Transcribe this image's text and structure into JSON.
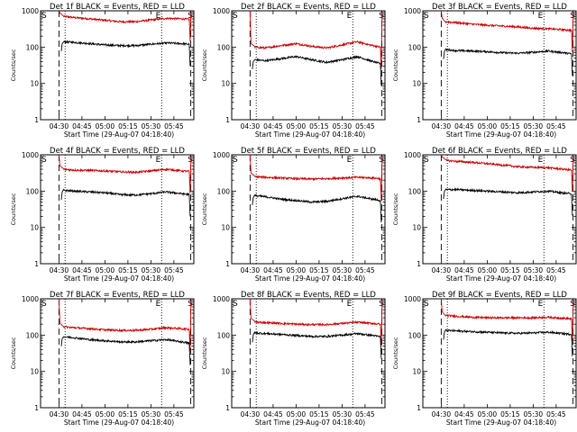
{
  "figure": {
    "y_axis_label": "Counts/sec",
    "x_axis_label": "Start Time (29-Aug-07 04:18:40)",
    "x_tick_labels": [
      "04:30",
      "04:45",
      "05:00",
      "05:15",
      "05:30",
      "05:45"
    ],
    "y_tick_labels": [
      "1",
      "10",
      "100",
      "1000"
    ],
    "marker_labels": {
      "start": "S",
      "end": "E"
    },
    "colors": {
      "events": "#000000",
      "lld": "#cc0000",
      "axes": "#000000"
    }
  },
  "chart_data": [
    {
      "type": "line",
      "title": "Det 1f BLACK = Events, RED = LLD",
      "xlabel": "Start Time (29-Aug-07 04:18:40)",
      "ylabel": "Counts/sec",
      "y_scale": "log",
      "ylim": [
        1,
        1000
      ],
      "xlim": [
        "04:18",
        "05:58"
      ],
      "x_ticks": [
        "04:30",
        "04:45",
        "05:00",
        "05:15",
        "05:30",
        "05:45"
      ],
      "vlines": {
        "dashed": [
          "04:30",
          "05:56"
        ],
        "dotted": [
          "04:34",
          "05:37"
        ]
      },
      "x": [
        "04:33",
        "04:40",
        "04:50",
        "05:00",
        "05:10",
        "05:20",
        "05:30",
        "05:40",
        "05:50",
        "05:55"
      ],
      "series": [
        {
          "name": "LLD",
          "color": "#cc0000",
          "values": [
            700,
            650,
            600,
            550,
            500,
            500,
            560,
            620,
            600,
            580
          ]
        },
        {
          "name": "Events",
          "color": "#000000",
          "values": [
            140,
            135,
            125,
            115,
            110,
            110,
            120,
            130,
            125,
            120
          ]
        }
      ]
    },
    {
      "type": "line",
      "title": "Det 2f BLACK = Events, RED = LLD",
      "xlabel": "Start Time (29-Aug-07 04:18:40)",
      "ylabel": "Counts/sec",
      "y_scale": "log",
      "ylim": [
        1,
        1000
      ],
      "xlim": [
        "04:18",
        "05:58"
      ],
      "x_ticks": [
        "04:30",
        "04:45",
        "05:00",
        "05:15",
        "05:30",
        "05:45"
      ],
      "vlines": {
        "dashed": [
          "04:30",
          "05:56"
        ],
        "dotted": [
          "04:34",
          "05:37"
        ]
      },
      "x": [
        "04:33",
        "04:40",
        "04:50",
        "05:00",
        "05:10",
        "05:20",
        "05:30",
        "05:40",
        "05:50",
        "05:55"
      ],
      "series": [
        {
          "name": "LLD",
          "color": "#cc0000",
          "values": [
            100,
            95,
            110,
            125,
            105,
            95,
            115,
            140,
            110,
            100
          ]
        },
        {
          "name": "Events",
          "color": "#000000",
          "values": [
            45,
            42,
            48,
            55,
            45,
            38,
            45,
            55,
            40,
            35
          ]
        }
      ]
    },
    {
      "type": "line",
      "title": "Det 3f BLACK = Events, RED = LLD",
      "xlabel": "Start Time (29-Aug-07 04:18:40)",
      "ylabel": "Counts/sec",
      "y_scale": "log",
      "ylim": [
        1,
        1000
      ],
      "xlim": [
        "04:18",
        "05:58"
      ],
      "x_ticks": [
        "04:30",
        "04:45",
        "05:00",
        "05:15",
        "05:30",
        "05:45"
      ],
      "vlines": {
        "dashed": [
          "04:30",
          "05:56"
        ],
        "dotted": [
          "04:34",
          "05:37"
        ]
      },
      "x": [
        "04:33",
        "04:40",
        "04:50",
        "05:00",
        "05:10",
        "05:20",
        "05:30",
        "05:40",
        "05:50",
        "05:55"
      ],
      "series": [
        {
          "name": "LLD",
          "color": "#cc0000",
          "values": [
            500,
            470,
            430,
            400,
            380,
            360,
            330,
            320,
            300,
            290
          ]
        },
        {
          "name": "Events",
          "color": "#000000",
          "values": [
            85,
            80,
            78,
            75,
            70,
            68,
            72,
            78,
            70,
            65
          ]
        }
      ]
    },
    {
      "type": "line",
      "title": "Det 4f BLACK = Events, RED = LLD",
      "xlabel": "Start Time (29-Aug-07 04:18:40)",
      "ylabel": "Counts/sec",
      "y_scale": "log",
      "ylim": [
        1,
        1000
      ],
      "xlim": [
        "04:18",
        "05:58"
      ],
      "x_ticks": [
        "04:30",
        "04:45",
        "05:00",
        "05:15",
        "05:30",
        "05:45"
      ],
      "vlines": {
        "dashed": [
          "04:30",
          "05:56"
        ],
        "dotted": [
          "04:34",
          "05:37"
        ]
      },
      "x": [
        "04:33",
        "04:40",
        "04:50",
        "05:00",
        "05:10",
        "05:20",
        "05:30",
        "05:40",
        "05:50",
        "05:55"
      ],
      "series": [
        {
          "name": "LLD",
          "color": "#cc0000",
          "values": [
            400,
            380,
            370,
            360,
            340,
            330,
            360,
            400,
            360,
            350
          ]
        },
        {
          "name": "Events",
          "color": "#000000",
          "values": [
            105,
            100,
            95,
            90,
            80,
            78,
            85,
            95,
            85,
            80
          ]
        }
      ]
    },
    {
      "type": "line",
      "title": "Det 5f BLACK = Events, RED = LLD",
      "xlabel": "Start Time (29-Aug-07 04:18:40)",
      "ylabel": "Counts/sec",
      "y_scale": "log",
      "ylim": [
        1,
        1000
      ],
      "xlim": [
        "04:18",
        "05:58"
      ],
      "x_ticks": [
        "04:30",
        "04:45",
        "05:00",
        "05:15",
        "05:30",
        "05:45"
      ],
      "vlines": {
        "dashed": [
          "04:30",
          "05:56"
        ],
        "dotted": [
          "04:34",
          "05:37"
        ]
      },
      "x": [
        "04:33",
        "04:40",
        "04:50",
        "05:00",
        "05:10",
        "05:20",
        "05:30",
        "05:40",
        "05:50",
        "05:55"
      ],
      "series": [
        {
          "name": "LLD",
          "color": "#cc0000",
          "values": [
            250,
            240,
            230,
            220,
            215,
            220,
            230,
            240,
            230,
            220
          ]
        },
        {
          "name": "Events",
          "color": "#000000",
          "values": [
            75,
            70,
            60,
            55,
            50,
            52,
            62,
            72,
            60,
            55
          ]
        }
      ]
    },
    {
      "type": "line",
      "title": "Det 6f BLACK = Events, RED = LLD",
      "xlabel": "Start Time (29-Aug-07 04:18:40)",
      "ylabel": "Counts/sec",
      "y_scale": "log",
      "ylim": [
        1,
        1000
      ],
      "xlim": [
        "04:18",
        "05:58"
      ],
      "x_ticks": [
        "04:30",
        "04:45",
        "05:00",
        "05:15",
        "05:30",
        "05:45"
      ],
      "vlines": {
        "dashed": [
          "04:30",
          "05:56"
        ],
        "dotted": [
          "04:34",
          "05:37"
        ]
      },
      "x": [
        "04:33",
        "04:40",
        "04:50",
        "05:00",
        "05:10",
        "05:20",
        "05:30",
        "05:40",
        "05:50",
        "05:55"
      ],
      "series": [
        {
          "name": "LLD",
          "color": "#cc0000",
          "values": [
            700,
            660,
            620,
            570,
            520,
            470,
            450,
            440,
            400,
            380
          ]
        },
        {
          "name": "Events",
          "color": "#000000",
          "values": [
            110,
            110,
            105,
            100,
            95,
            90,
            95,
            100,
            88,
            85
          ]
        }
      ]
    },
    {
      "type": "line",
      "title": "Det 7f BLACK = Events, RED = LLD",
      "xlabel": "Start Time (29-Aug-07 04:18:40)",
      "ylabel": "Counts/sec",
      "y_scale": "log",
      "ylim": [
        1,
        1000
      ],
      "xlim": [
        "04:18",
        "05:58"
      ],
      "x_ticks": [
        "04:30",
        "04:45",
        "05:00",
        "05:15",
        "05:30",
        "05:45"
      ],
      "vlines": {
        "dashed": [
          "04:30",
          "05:56"
        ],
        "dotted": [
          "04:34",
          "05:37"
        ]
      },
      "x": [
        "04:33",
        "04:40",
        "04:50",
        "05:00",
        "05:10",
        "05:20",
        "05:30",
        "05:40",
        "05:50",
        "05:55"
      ],
      "series": [
        {
          "name": "LLD",
          "color": "#cc0000",
          "values": [
            170,
            160,
            150,
            140,
            135,
            135,
            145,
            160,
            150,
            145
          ]
        },
        {
          "name": "Events",
          "color": "#000000",
          "values": [
            90,
            85,
            75,
            70,
            65,
            65,
            70,
            75,
            65,
            60
          ]
        }
      ]
    },
    {
      "type": "line",
      "title": "Det 8f BLACK = Events, RED = LLD",
      "xlabel": "Start Time (29-Aug-07 04:18:40)",
      "ylabel": "Counts/sec",
      "y_scale": "log",
      "ylim": [
        1,
        1000
      ],
      "xlim": [
        "04:18",
        "05:58"
      ],
      "x_ticks": [
        "04:30",
        "04:45",
        "05:00",
        "05:15",
        "05:30",
        "05:45"
      ],
      "vlines": {
        "dashed": [
          "04:30",
          "05:56"
        ],
        "dotted": [
          "04:34",
          "05:37"
        ]
      },
      "x": [
        "04:33",
        "04:40",
        "04:50",
        "05:00",
        "05:10",
        "05:20",
        "05:30",
        "05:40",
        "05:50",
        "05:55"
      ],
      "series": [
        {
          "name": "LLD",
          "color": "#cc0000",
          "values": [
            230,
            220,
            210,
            200,
            195,
            195,
            210,
            225,
            210,
            200
          ]
        },
        {
          "name": "Events",
          "color": "#000000",
          "values": [
            115,
            110,
            105,
            98,
            92,
            92,
            100,
            110,
            98,
            90
          ]
        }
      ]
    },
    {
      "type": "line",
      "title": "Det 9f BLACK = Events, RED = LLD",
      "xlabel": "Start Time (29-Aug-07 04:18:40)",
      "ylabel": "Counts/sec",
      "y_scale": "log",
      "ylim": [
        1,
        1000
      ],
      "xlim": [
        "04:18",
        "05:58"
      ],
      "x_ticks": [
        "04:30",
        "04:45",
        "05:00",
        "05:15",
        "05:30",
        "05:45"
      ],
      "vlines": {
        "dashed": [
          "04:30",
          "05:56"
        ],
        "dotted": [
          "04:34",
          "05:37"
        ]
      },
      "x": [
        "04:33",
        "04:40",
        "04:50",
        "05:00",
        "05:10",
        "05:20",
        "05:30",
        "05:40",
        "05:50",
        "05:55"
      ],
      "series": [
        {
          "name": "LLD",
          "color": "#cc0000",
          "values": [
            350,
            330,
            310,
            300,
            300,
            300,
            300,
            310,
            290,
            280
          ]
        },
        {
          "name": "Events",
          "color": "#000000",
          "values": [
            135,
            130,
            125,
            120,
            115,
            112,
            115,
            120,
            110,
            105
          ]
        }
      ]
    }
  ]
}
